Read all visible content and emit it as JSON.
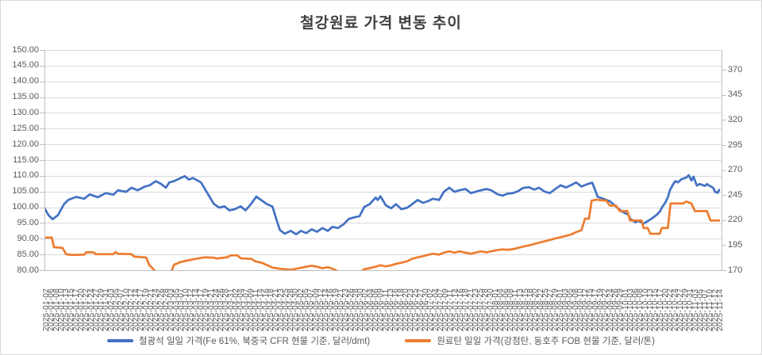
{
  "chart_data": {
    "type": "line",
    "title": "철강원료 가격 변동 추이",
    "grid": true,
    "legend_position": "bottom",
    "left_axis": {
      "min": 80,
      "max": 150,
      "step": 5,
      "labels": [
        "150.00",
        "145.00",
        "140.00",
        "135.00",
        "130.00",
        "125.00",
        "120.00",
        "115.00",
        "110.00",
        "105.00",
        "100.00",
        "95.00",
        "90.00",
        "85.00",
        "80.00"
      ]
    },
    "right_axis": {
      "min": 170,
      "max": 390,
      "step": 25,
      "labels": [
        "370",
        "345",
        "320",
        "295",
        "270",
        "245",
        "220",
        "195",
        "170"
      ]
    },
    "x_labels": [
      "2025-01-02",
      "2025-01-06",
      "2025-01-08",
      "2025-01-10",
      "2025-01-13",
      "2025-01-15",
      "2025-01-17",
      "2025-01-20",
      "2025-01-22",
      "2025-01-24",
      "2025-01-27",
      "2025-01-29",
      "2025-01-31",
      "2025-02-03",
      "2025-02-05",
      "2025-02-07",
      "2025-02-10",
      "2025-02-12",
      "2025-02-14",
      "2025-02-17",
      "2025-02-19",
      "2025-02-21",
      "2025-02-24",
      "2025-02-26",
      "2025-02-28",
      "2025-03-03",
      "2025-03-05",
      "2025-03-07",
      "2025-03-10",
      "2025-03-12",
      "2025-03-14",
      "2025-03-17",
      "2025-03-19",
      "2025-03-21",
      "2025-03-24",
      "2025-03-26",
      "2025-03-28",
      "2025-03-31",
      "2025-04-02",
      "2025-04-04",
      "2025-04-07",
      "2025-04-09",
      "2025-04-11",
      "2025-04-14",
      "2025-04-16",
      "2025-04-18",
      "2025-04-21",
      "2025-04-23",
      "2025-04-25",
      "2025-04-28",
      "2025-04-30",
      "2025-05-02",
      "2025-05-05",
      "2025-05-07",
      "2025-05-09",
      "2025-05-12",
      "2025-05-14",
      "2025-05-16",
      "2025-05-19",
      "2025-05-21",
      "2025-05-23",
      "2025-05-26",
      "2025-05-28",
      "2025-05-30",
      "2025-06-02",
      "2025-06-04",
      "2025-06-06",
      "2025-06-09",
      "2025-06-11",
      "2025-06-13",
      "2025-06-16",
      "2025-06-18",
      "2025-06-20",
      "2025-06-23",
      "2025-06-25",
      "2025-06-27",
      "2025-06-30",
      "2025-07-02",
      "2025-07-04",
      "2025-07-07",
      "2025-07-09",
      "2025-07-11",
      "2025-07-14",
      "2025-07-16",
      "2025-07-18",
      "2025-07-21",
      "2025-07-23",
      "2025-07-25",
      "2025-07-28",
      "2025-07-30",
      "2025-08-01",
      "2025-08-04",
      "2025-08-06",
      "2025-08-08",
      "2025-08-11",
      "2025-08-13",
      "2025-08-15",
      "2025-08-18",
      "2025-08-20",
      "2025-08-22",
      "2025-08-25",
      "2025-08-27",
      "2025-08-29",
      "2025-09-01",
      "2025-09-03",
      "2025-09-05",
      "2025-09-08",
      "2025-09-10",
      "2025-09-12",
      "2025-09-15",
      "2025-09-17",
      "2025-09-19",
      "2025-09-22",
      "2025-09-24",
      "2025-09-26",
      "2025-09-29",
      "2025-10-01",
      "2025-10-03",
      "2025-10-06",
      "2025-10-08",
      "2025-10-10",
      "2025-10-13",
      "2025-10-15",
      "2025-10-17",
      "2025-10-20",
      "2025-10-22",
      "2025-10-24",
      "2025-10-27",
      "2025-10-29",
      "2025-10-31",
      "2025-11-03",
      "2025-11-05",
      "2025-11-07",
      "2025-11-10",
      "2025-11-12",
      "2025-11-14"
    ],
    "series": [
      {
        "name": "철광석 일일 가격(Fe 61%, 북중국 CFR 현물 기준, 달러/dmt)",
        "axis": "left",
        "color": "#4472C4",
        "points": [
          [
            0.0,
            99.8
          ],
          [
            0.006,
            97.5
          ],
          [
            0.012,
            96.2
          ],
          [
            0.02,
            97.5
          ],
          [
            0.029,
            101.0
          ],
          [
            0.035,
            102.3
          ],
          [
            0.047,
            103.3
          ],
          [
            0.059,
            102.7
          ],
          [
            0.067,
            104.1
          ],
          [
            0.079,
            103.2
          ],
          [
            0.091,
            104.5
          ],
          [
            0.102,
            104.0
          ],
          [
            0.109,
            105.4
          ],
          [
            0.121,
            104.9
          ],
          [
            0.129,
            106.2
          ],
          [
            0.138,
            105.4
          ],
          [
            0.149,
            106.6
          ],
          [
            0.156,
            107.0
          ],
          [
            0.165,
            108.3
          ],
          [
            0.173,
            107.4
          ],
          [
            0.18,
            106.2
          ],
          [
            0.185,
            107.9
          ],
          [
            0.192,
            108.3
          ],
          [
            0.201,
            109.2
          ],
          [
            0.208,
            109.9
          ],
          [
            0.214,
            108.8
          ],
          [
            0.22,
            109.3
          ],
          [
            0.232,
            107.9
          ],
          [
            0.244,
            103.6
          ],
          [
            0.251,
            101.1
          ],
          [
            0.259,
            99.9
          ],
          [
            0.267,
            100.3
          ],
          [
            0.274,
            99.0
          ],
          [
            0.282,
            99.4
          ],
          [
            0.291,
            100.3
          ],
          [
            0.298,
            99.0
          ],
          [
            0.306,
            101.0
          ],
          [
            0.314,
            103.4
          ],
          [
            0.321,
            102.3
          ],
          [
            0.329,
            101.1
          ],
          [
            0.338,
            100.2
          ],
          [
            0.344,
            96.0
          ],
          [
            0.349,
            92.8
          ],
          [
            0.356,
            91.6
          ],
          [
            0.365,
            92.5
          ],
          [
            0.373,
            91.4
          ],
          [
            0.38,
            92.5
          ],
          [
            0.388,
            91.8
          ],
          [
            0.396,
            93.0
          ],
          [
            0.404,
            92.2
          ],
          [
            0.412,
            93.4
          ],
          [
            0.42,
            92.5
          ],
          [
            0.427,
            93.8
          ],
          [
            0.435,
            93.4
          ],
          [
            0.444,
            94.7
          ],
          [
            0.451,
            96.3
          ],
          [
            0.459,
            96.8
          ],
          [
            0.467,
            97.2
          ],
          [
            0.474,
            100.1
          ],
          [
            0.482,
            101.0
          ],
          [
            0.491,
            103.1
          ],
          [
            0.494,
            102.3
          ],
          [
            0.498,
            103.5
          ],
          [
            0.506,
            100.6
          ],
          [
            0.514,
            99.7
          ],
          [
            0.521,
            101.0
          ],
          [
            0.529,
            99.4
          ],
          [
            0.538,
            99.9
          ],
          [
            0.545,
            101.0
          ],
          [
            0.553,
            102.3
          ],
          [
            0.561,
            101.4
          ],
          [
            0.568,
            101.9
          ],
          [
            0.576,
            102.7
          ],
          [
            0.585,
            102.3
          ],
          [
            0.592,
            104.9
          ],
          [
            0.6,
            106.2
          ],
          [
            0.608,
            104.9
          ],
          [
            0.615,
            105.4
          ],
          [
            0.624,
            105.8
          ],
          [
            0.632,
            104.5
          ],
          [
            0.639,
            104.9
          ],
          [
            0.647,
            105.4
          ],
          [
            0.655,
            105.8
          ],
          [
            0.662,
            105.4
          ],
          [
            0.671,
            104.2
          ],
          [
            0.679,
            103.7
          ],
          [
            0.686,
            104.3
          ],
          [
            0.694,
            104.5
          ],
          [
            0.702,
            105.1
          ],
          [
            0.709,
            106.1
          ],
          [
            0.718,
            106.4
          ],
          [
            0.726,
            105.6
          ],
          [
            0.733,
            106.2
          ],
          [
            0.741,
            105.0
          ],
          [
            0.749,
            104.5
          ],
          [
            0.756,
            105.6
          ],
          [
            0.765,
            107.0
          ],
          [
            0.773,
            106.3
          ],
          [
            0.78,
            107.0
          ],
          [
            0.788,
            107.9
          ],
          [
            0.796,
            106.6
          ],
          [
            0.804,
            107.3
          ],
          [
            0.812,
            107.8
          ],
          [
            0.82,
            103.3
          ],
          [
            0.826,
            102.9
          ],
          [
            0.838,
            101.9
          ],
          [
            0.849,
            99.9
          ],
          [
            0.856,
            98.6
          ],
          [
            0.865,
            97.7
          ],
          [
            0.868,
            96.4
          ],
          [
            0.876,
            95.2
          ],
          [
            0.88,
            95.7
          ],
          [
            0.888,
            94.8
          ],
          [
            0.892,
            95.3
          ],
          [
            0.9,
            96.4
          ],
          [
            0.908,
            97.7
          ],
          [
            0.912,
            98.6
          ],
          [
            0.915,
            99.9
          ],
          [
            0.92,
            101.4
          ],
          [
            0.924,
            103.2
          ],
          [
            0.927,
            105.4
          ],
          [
            0.932,
            107.4
          ],
          [
            0.935,
            108.3
          ],
          [
            0.939,
            107.9
          ],
          [
            0.944,
            108.9
          ],
          [
            0.951,
            109.4
          ],
          [
            0.955,
            110.2
          ],
          [
            0.959,
            108.5
          ],
          [
            0.962,
            109.7
          ],
          [
            0.967,
            106.9
          ],
          [
            0.971,
            107.4
          ],
          [
            0.979,
            106.8
          ],
          [
            0.982,
            107.4
          ],
          [
            0.986,
            106.8
          ],
          [
            0.991,
            106.2
          ],
          [
            0.994,
            104.9
          ],
          [
            0.998,
            104.6
          ],
          [
            1.0,
            105.5
          ]
        ]
      },
      {
        "name": "원료탄 일일 가격(강점탄, 동호주 FOB 현물 기준, 달러/톤)",
        "axis": "right",
        "color": "#ED7D31",
        "points": [
          [
            0.0,
            202.5
          ],
          [
            0.011,
            202.5
          ],
          [
            0.014,
            193.0
          ],
          [
            0.027,
            192.2
          ],
          [
            0.032,
            186.0
          ],
          [
            0.041,
            185.2
          ],
          [
            0.059,
            185.5
          ],
          [
            0.062,
            188.0
          ],
          [
            0.073,
            187.8
          ],
          [
            0.076,
            186.0
          ],
          [
            0.102,
            186.0
          ],
          [
            0.105,
            188.2
          ],
          [
            0.109,
            186.5
          ],
          [
            0.129,
            186.0
          ],
          [
            0.133,
            183.5
          ],
          [
            0.151,
            182.7
          ],
          [
            0.155,
            175.5
          ],
          [
            0.165,
            168.5
          ],
          [
            0.174,
            167.7
          ],
          [
            0.188,
            168.3
          ],
          [
            0.192,
            175.5
          ],
          [
            0.202,
            178.2
          ],
          [
            0.214,
            180.0
          ],
          [
            0.226,
            181.6
          ],
          [
            0.238,
            182.9
          ],
          [
            0.251,
            182.5
          ],
          [
            0.255,
            181.6
          ],
          [
            0.271,
            183.0
          ],
          [
            0.276,
            184.8
          ],
          [
            0.286,
            184.8
          ],
          [
            0.291,
            181.9
          ],
          [
            0.307,
            181.3
          ],
          [
            0.312,
            179.0
          ],
          [
            0.324,
            177.0
          ],
          [
            0.338,
            172.5
          ],
          [
            0.349,
            171.5
          ],
          [
            0.365,
            170.5
          ],
          [
            0.376,
            171.8
          ],
          [
            0.388,
            173.5
          ],
          [
            0.396,
            174.5
          ],
          [
            0.404,
            173.5
          ],
          [
            0.412,
            172.0
          ],
          [
            0.42,
            173.0
          ],
          [
            0.427,
            171.5
          ],
          [
            0.435,
            169.0
          ],
          [
            0.444,
            167.5
          ],
          [
            0.453,
            167.0
          ],
          [
            0.462,
            167.8
          ],
          [
            0.467,
            167.5
          ],
          [
            0.474,
            171.0
          ],
          [
            0.482,
            172.0
          ],
          [
            0.491,
            173.5
          ],
          [
            0.498,
            175.0
          ],
          [
            0.506,
            173.8
          ],
          [
            0.514,
            175.0
          ],
          [
            0.521,
            176.3
          ],
          [
            0.529,
            177.5
          ],
          [
            0.538,
            179.0
          ],
          [
            0.545,
            181.5
          ],
          [
            0.553,
            182.8
          ],
          [
            0.561,
            184.0
          ],
          [
            0.568,
            185.3
          ],
          [
            0.576,
            186.5
          ],
          [
            0.585,
            185.5
          ],
          [
            0.592,
            187.5
          ],
          [
            0.6,
            188.8
          ],
          [
            0.608,
            187.5
          ],
          [
            0.615,
            188.8
          ],
          [
            0.624,
            187.5
          ],
          [
            0.632,
            186.5
          ],
          [
            0.639,
            187.5
          ],
          [
            0.647,
            188.8
          ],
          [
            0.655,
            187.8
          ],
          [
            0.662,
            188.8
          ],
          [
            0.671,
            190.0
          ],
          [
            0.679,
            190.8
          ],
          [
            0.686,
            190.3
          ],
          [
            0.694,
            191.0
          ],
          [
            0.702,
            192.3
          ],
          [
            0.709,
            193.5
          ],
          [
            0.718,
            194.8
          ],
          [
            0.726,
            196.2
          ],
          [
            0.733,
            197.5
          ],
          [
            0.741,
            198.8
          ],
          [
            0.749,
            200.2
          ],
          [
            0.756,
            201.5
          ],
          [
            0.765,
            203.0
          ],
          [
            0.773,
            204.3
          ],
          [
            0.78,
            205.5
          ],
          [
            0.788,
            208.0
          ],
          [
            0.796,
            210.0
          ],
          [
            0.801,
            221.4
          ],
          [
            0.807,
            221.4
          ],
          [
            0.811,
            239.5
          ],
          [
            0.818,
            240.4
          ],
          [
            0.833,
            239.4
          ],
          [
            0.838,
            234.6
          ],
          [
            0.847,
            234.6
          ],
          [
            0.853,
            229.0
          ],
          [
            0.864,
            229.0
          ],
          [
            0.868,
            219.6
          ],
          [
            0.885,
            219.6
          ],
          [
            0.888,
            212.2
          ],
          [
            0.894,
            212.2
          ],
          [
            0.898,
            206.4
          ],
          [
            0.912,
            206.4
          ],
          [
            0.915,
            212.2
          ],
          [
            0.924,
            212.2
          ],
          [
            0.928,
            236.6
          ],
          [
            0.947,
            236.6
          ],
          [
            0.951,
            238.6
          ],
          [
            0.959,
            236.6
          ],
          [
            0.964,
            229.0
          ],
          [
            0.982,
            229.0
          ],
          [
            0.987,
            219.6
          ],
          [
            1.0,
            219.6
          ]
        ]
      }
    ]
  }
}
